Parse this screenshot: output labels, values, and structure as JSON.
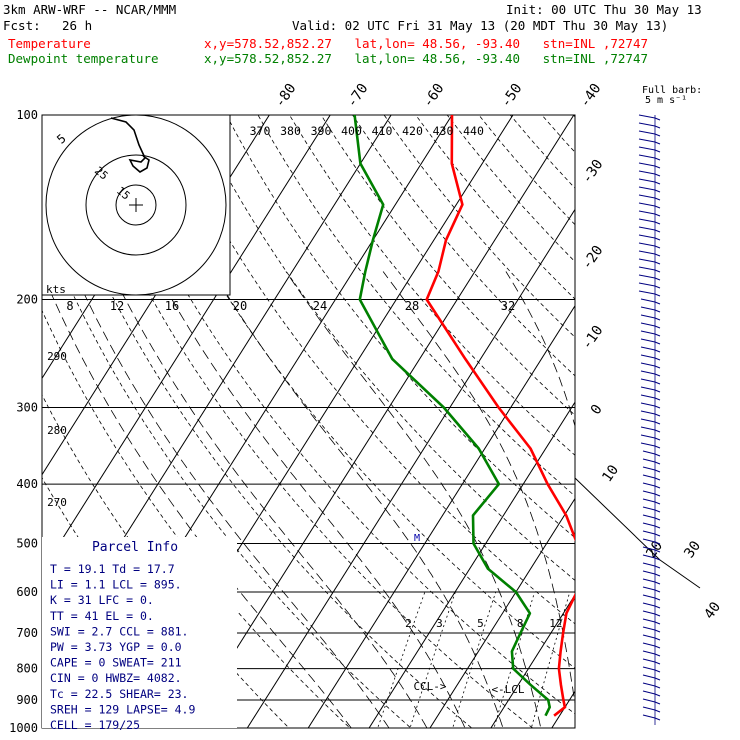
{
  "header": {
    "model": "3km ARW-WRF -- NCAR/MMM",
    "init": "Init: 00 UTC Thu 30 May 13",
    "fcst_label": "Fcst:",
    "fcst_hours": "26 h",
    "valid": "Valid: 02 UTC Fri 31 May 13 (20 MDT Thu 30 May 13)",
    "temp_name": "Temperature",
    "dew_name": "Dewpoint temperature",
    "temp_info": "x,y=578.52,852.27   lat,lon= 48.56, -93.40   stn=INL ,72747",
    "dew_info": "x,y=578.52,852.27   lat,lon= 48.56, -93.40   stn=INL ,72747"
  },
  "barb_legend": {
    "line1": "Full barb:",
    "line2": "5 m s⁻¹"
  },
  "hodograph": {
    "units": "kts",
    "ring_labels": [
      "5",
      "25",
      "15"
    ],
    "speed_labels": [
      "8",
      "12",
      "16",
      "20",
      "24",
      "28",
      "32"
    ]
  },
  "theta_labels": [
    "370",
    "380",
    "390",
    "400",
    "410",
    "420",
    "430",
    "440"
  ],
  "dry_adiabat_labels": [
    "290",
    "280",
    "270"
  ],
  "mixing_ratio_labels": [
    "2",
    "3",
    "5",
    "8",
    "12",
    "20"
  ],
  "marker_labels": {
    "m": "M",
    "ccl": "CCL->",
    "lcl": "<-LCL"
  },
  "parcel_info": {
    "title": "Parcel Info",
    "rows": [
      "T   =   19.1  Td =  17.7",
      "LI  =    1.1  LCL =  895.",
      "K   =     31  LFC =    0.",
      "TT  =     41  EL  =    0.",
      "SWI =    2.7  CCL =  881.",
      "PW  =   3.73  YGP =   0.0",
      "CAPE =     0  SWEAT=  211",
      "CIN  =     0  HWBZ= 4082.",
      "Tc  =   22.5  SHEAR=  23.",
      "SREH =   129  LAPSE=  4.9",
      "CELL = 179/25"
    ]
  },
  "colors": {
    "temperature": "#ff0000",
    "dewpoint": "#008000",
    "barbs": "#000080"
  },
  "chart_data": {
    "type": "line",
    "title": "Skew-T log-P sounding",
    "pressure_levels_hPa": [
      1000,
      900,
      800,
      700,
      600,
      500,
      400,
      300,
      200,
      100
    ],
    "pressure_tick_labels": [
      "1000",
      "900",
      "800",
      "700",
      "600",
      "500",
      "400",
      "300",
      "200",
      "100"
    ],
    "isotherm_labels_C": [
      "-80",
      "-70",
      "-60",
      "-50",
      "-40",
      "-30",
      "-20",
      "-10",
      "0",
      "10",
      "20",
      "30",
      "40"
    ],
    "series": [
      {
        "name": "Temperature",
        "pressure": [
          955,
          925,
          900,
          850,
          800,
          750,
          700,
          650,
          600,
          550,
          500,
          450,
          400,
          350,
          300,
          250,
          200,
          180,
          160,
          140,
          120,
          100
        ],
        "value_C": [
          19.1,
          20,
          19,
          17,
          15,
          13.5,
          12,
          10.5,
          10,
          7.5,
          5,
          0.3,
          -6,
          -12.5,
          -22,
          -32.5,
          -45,
          -46,
          -48,
          -49,
          -55,
          -60
        ]
      },
      {
        "name": "Dewpoint temperature",
        "pressure": [
          955,
          925,
          900,
          850,
          800,
          750,
          700,
          650,
          600,
          550,
          500,
          450,
          400,
          350,
          300,
          250,
          200,
          180,
          160,
          140,
          120,
          100
        ],
        "value_C": [
          17.7,
          17.5,
          16.5,
          12,
          7.5,
          5.5,
          5,
          4.5,
          0,
          -7,
          -12,
          -15,
          -14,
          -21,
          -31,
          -44.5,
          -56,
          -58,
          -60,
          -62,
          -70,
          -76
        ]
      }
    ]
  }
}
